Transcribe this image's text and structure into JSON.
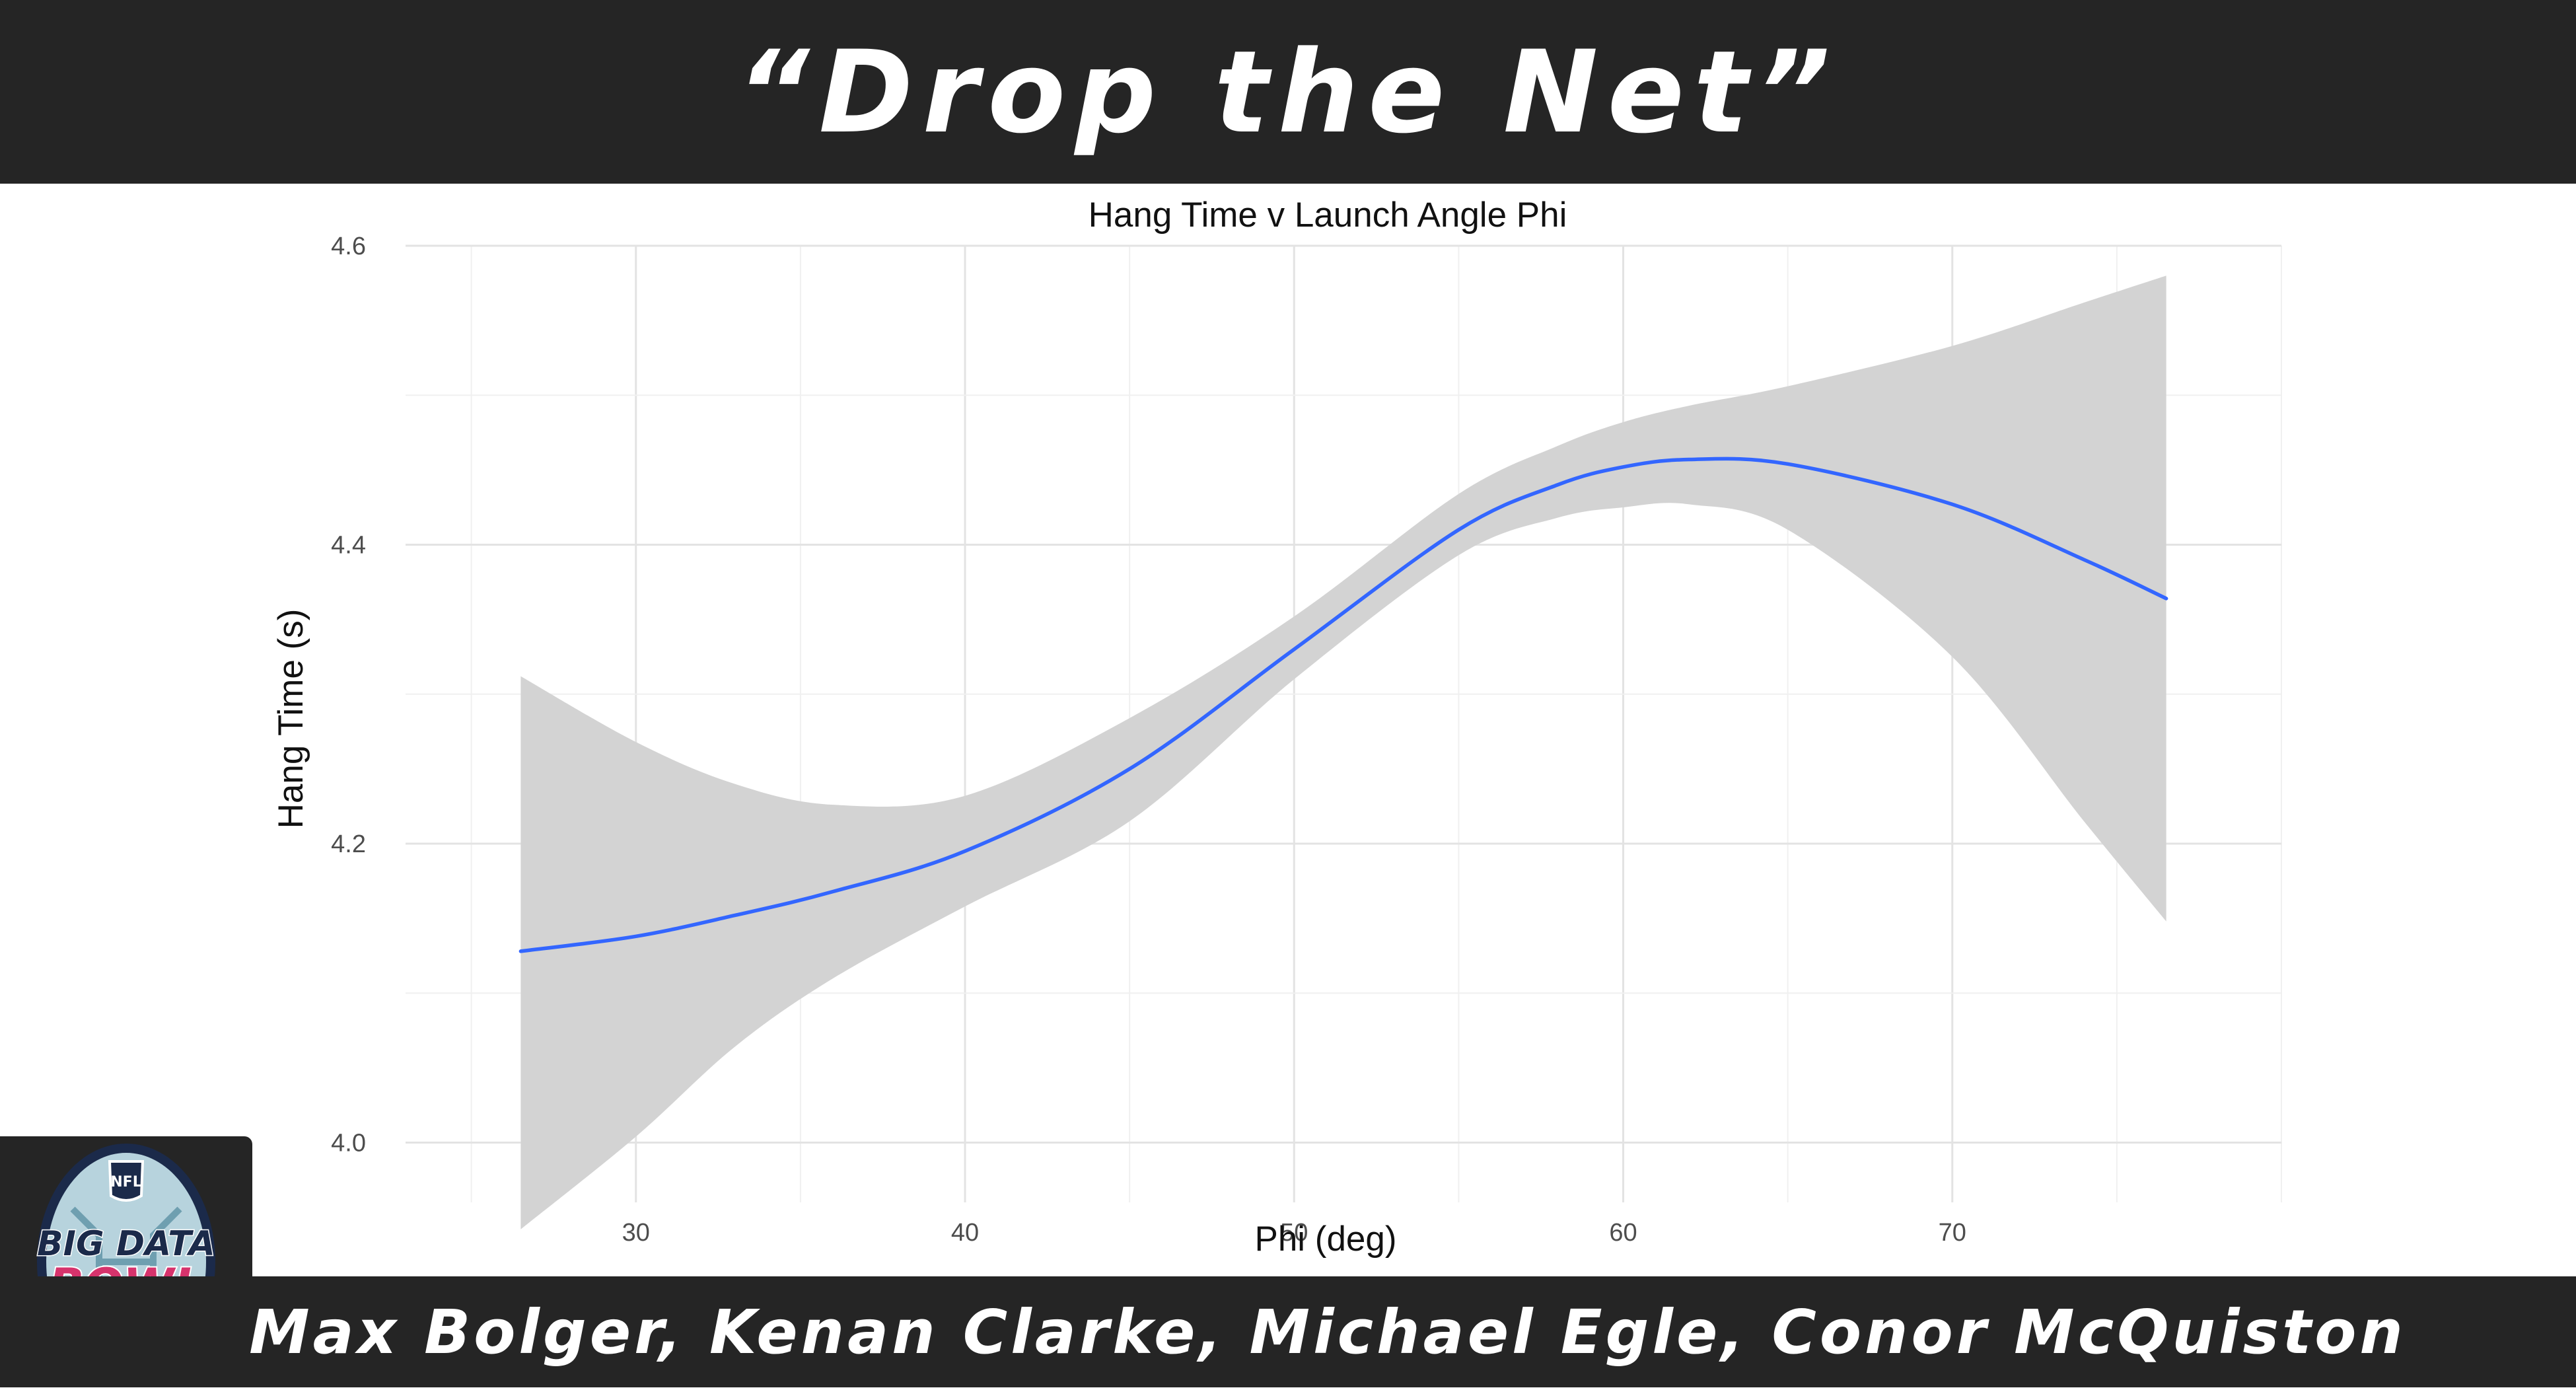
{
  "header": {
    "title": "“Drop the Net”"
  },
  "footer": {
    "authors": "Max Bolger, Kenan Clarke, Michael Egle, Conor McQuiston"
  },
  "logo": {
    "line1": "BIG DATA",
    "line2": "BOWL",
    "badge": "NFL"
  },
  "colors": {
    "bar_bg": "#252525",
    "line": "#3366ff",
    "band": "#d3d3d3",
    "logo_pink": "#d6336c",
    "logo_navy": "#1b2a4a"
  },
  "chart_data": {
    "type": "line",
    "title": "Hang Time v Launch Angle Phi",
    "xlabel": "Phi (deg)",
    "ylabel": "Hang Time (s)",
    "xlim": [
      23,
      80
    ],
    "ylim": [
      3.96,
      4.6
    ],
    "xticks": [
      30,
      40,
      50,
      60,
      70
    ],
    "yticks": [
      4.0,
      4.2,
      4.4,
      4.6
    ],
    "xtick_labels": [
      "30",
      "40",
      "50",
      "60",
      "70"
    ],
    "ytick_labels": [
      "4.0",
      "4.2",
      "4.4",
      "4.6"
    ],
    "grid": true,
    "series": [
      {
        "x": [
          26.5,
          30,
          33,
          36,
          40,
          45,
          50,
          55,
          58,
          60,
          62,
          65,
          70,
          74,
          76.5
        ],
        "y": [
          4.128,
          4.138,
          4.152,
          4.168,
          4.195,
          4.25,
          4.33,
          4.41,
          4.44,
          4.452,
          4.457,
          4.454,
          4.427,
          4.39,
          4.364
        ],
        "upper": [
          4.312,
          4.268,
          4.24,
          4.226,
          4.232,
          4.284,
          4.352,
          4.434,
          4.466,
          4.482,
          4.493,
          4.506,
          4.533,
          4.562,
          4.58
        ],
        "lower": [
          3.942,
          4.004,
          4.064,
          4.11,
          4.158,
          4.215,
          4.31,
          4.393,
          4.418,
          4.425,
          4.427,
          4.41,
          4.325,
          4.215,
          4.148
        ]
      }
    ]
  }
}
